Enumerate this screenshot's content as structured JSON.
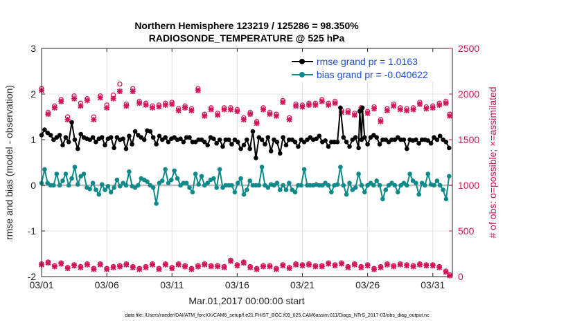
{
  "chart_data": {
    "type": "line",
    "title_line1": "Northern Hemisphere 123219 / 125286 = 98.350%",
    "title_line2": "RADIOSONDE_TEMPERATURE @ 525 hPa",
    "xlabel": "Mar.01,2017 00:00:00 start",
    "ylabel_left": "rmse and bias (model - observation)",
    "ylabel_right": "# of obs: o=possible; ×=assimilated",
    "footnote": "data file: /Users/raeder/DAI/ATM_forcXX/CAM6_setup/f.e21.FHIST_BGC.f09_025.CAM6assim.011/Diags_NTrS_2017-03/obs_diag_output.nc",
    "xlim": [
      0,
      31.5
    ],
    "x_tick_positions": [
      0,
      5,
      10,
      15,
      20,
      25,
      30
    ],
    "x_tick_labels": [
      "03/01",
      "03/06",
      "03/11",
      "03/16",
      "03/21",
      "03/26",
      "03/31"
    ],
    "ylim_left": [
      -2,
      3
    ],
    "y_left_ticks": [
      -2,
      -1,
      0,
      1,
      2,
      3
    ],
    "y_left_tick_labels": [
      "-2",
      "-1",
      "0",
      "1",
      "2",
      "3"
    ],
    "ylim_right": [
      0,
      2500
    ],
    "y_right_ticks": [
      0,
      500,
      1000,
      1500,
      2000,
      2500
    ],
    "y_right_tick_labels": [
      "0",
      "500",
      "1000",
      "1500",
      "2000",
      "2500"
    ],
    "legend": [
      {
        "name": "rmse grand pr = 1.0163",
        "color": "#000000"
      },
      {
        "name": "bias grand pr = -0.040622",
        "color": "#0f8a8a"
      }
    ],
    "colors": {
      "rmse": "#000000",
      "bias": "#0f8a8a",
      "obs": "#d4145a",
      "legend_text": "#1f4fd8",
      "zero_line": "#bbbbbb",
      "grid": "#e4e4e4"
    },
    "series": [
      {
        "name": "rmse",
        "axis": "left",
        "values": [
          1.1,
          1.22,
          1.15,
          1.1,
          1.0,
          1.05,
          1.1,
          0.88,
          1.05,
          0.95,
          1.38,
          1.0,
          0.8,
          1.12,
          1.05,
          1.02,
          1.0,
          1.05,
          0.95,
          1.02,
          1.05,
          0.88,
          1.02,
          1.05,
          0.82,
          1.05,
          1.0,
          1.02,
          0.8,
          1.08,
          0.9,
          1.18,
          1.1,
          1.05,
          1.0,
          1.2,
          1.18,
          1.05,
          0.9,
          1.08,
          1.0,
          1.05,
          0.95,
          1.02,
          1.05,
          1.0,
          1.02,
          0.95,
          1.05,
          1.05,
          0.95,
          0.95,
          1.0,
          1.0,
          0.95,
          0.88,
          1.05,
          1.02,
          0.92,
          1.0,
          0.85,
          1.0,
          1.0,
          0.9,
          1.0,
          0.95,
          0.8,
          0.88,
          1.0,
          0.8,
          1.18,
          0.6,
          1.05,
          1.0,
          0.9,
          1.05,
          0.75,
          1.0,
          0.95,
          0.7,
          1.05,
          0.88,
          1.0,
          1.0,
          0.95,
          0.85,
          1.0,
          0.95,
          1.0,
          1.05,
          1.0,
          1.02,
          1.08,
          0.95,
          0.98,
          0.85,
          0.95,
          0.95,
          0.95,
          1.7,
          1.05,
          0.95,
          0.85,
          1.0,
          1.05,
          0.82,
          1.0,
          1.05,
          0.9,
          1.05,
          1.1,
          1.05,
          0.9,
          1.0,
          1.0,
          0.95,
          1.0,
          1.0,
          1.05,
          1.0,
          1.0,
          0.8,
          1.0,
          0.98,
          1.0,
          0.92,
          1.0,
          1.0,
          0.98,
          0.92,
          1.05,
          1.0,
          1.08,
          1.0,
          0.95,
          0.82
        ],
        "spikes": [
          [
            24.4,
            1.62
          ],
          [
            24.6,
            1.7
          ]
        ]
      },
      {
        "name": "bias",
        "axis": "left",
        "values": [
          0.05,
          0.35,
          0.05,
          0.0,
          0.0,
          0.25,
          0.0,
          0.1,
          0.25,
          0.0,
          0.15,
          0.4,
          0.02,
          0.2,
          0.25,
          -0.05,
          -0.08,
          0.05,
          -0.1,
          -0.2,
          0.02,
          -0.1,
          -0.02,
          -0.15,
          -0.05,
          0.12,
          -0.02,
          0.05,
          0.0,
          0.3,
          -0.02,
          -0.05,
          0.0,
          0.15,
          0.12,
          0.08,
          0.0,
          -0.05,
          -0.4,
          0.05,
          0.1,
          0.35,
          0.05,
          0.12,
          0.32,
          0.15,
          0.0,
          0.05,
          0.05,
          -0.05,
          -0.15,
          0.25,
          0.02,
          0.2,
          0.0,
          0.05,
          0.12,
          0.15,
          -0.05,
          0.35,
          -0.05,
          0.0,
          0.0,
          0.0,
          -0.15,
          0.05,
          0.15,
          -0.2,
          -0.1,
          0.1,
          0.0,
          0.0,
          0.0,
          0.4,
          0.0,
          -0.05,
          0.02,
          0.0,
          0.05,
          -0.1,
          0.0,
          -0.1,
          0.05,
          -0.1,
          -0.15,
          0.0,
          0.0,
          0.35,
          0.0,
          0.0,
          0.0,
          0.02,
          0.0,
          0.0,
          0.05,
          0.0,
          -0.15,
          0.0,
          0.02,
          0.4,
          0.0,
          -0.2,
          0.05,
          -0.1,
          -0.05,
          0.25,
          0.0,
          -0.15,
          0.0,
          0.05,
          0.0,
          0.1,
          0.0,
          -0.3,
          -0.1,
          0.0,
          0.05,
          0.0,
          -0.15,
          0.0,
          0.05,
          0.0,
          0.25,
          0.1,
          0.05,
          -0.2,
          0.05,
          0.0,
          0.25,
          0.02,
          0.0,
          0.1,
          0.0,
          -0.1,
          -0.3,
          0.2
        ]
      },
      {
        "name": "# obs assimilated (×)",
        "axis": "right",
        "x": [
          0,
          0.5,
          1,
          1.5,
          2,
          2.5,
          3,
          3.5,
          4,
          4.5,
          5,
          5.5,
          6,
          6.5,
          7,
          7.5,
          8,
          8.5,
          9,
          9.5,
          10,
          10.5,
          11,
          11.5,
          12,
          12.5,
          13,
          13.5,
          14,
          14.5,
          15,
          15.5,
          16,
          16.5,
          17,
          17.5,
          18,
          18.5,
          19,
          19.5,
          20,
          20.5,
          21,
          21.5,
          22,
          22.5,
          23,
          23.5,
          24,
          24.5,
          25,
          25.5,
          26,
          26.5,
          27,
          27.5,
          28,
          28.5,
          29,
          29.5,
          30,
          30.5,
          31,
          31.3
        ],
        "values": [
          2040,
          1780,
          1850,
          1920,
          1720,
          1950,
          1870,
          1930,
          1720,
          1960,
          1850,
          1950,
          2030,
          1870,
          2030,
          1900,
          1880,
          1850,
          1860,
          1880,
          1890,
          1820,
          1850,
          1820,
          2040,
          1760,
          1830,
          1770,
          1830,
          1830,
          1810,
          1720,
          1780,
          1680,
          1830,
          1780,
          1760,
          1910,
          1720,
          1870,
          1860,
          1880,
          1880,
          1920,
          1880,
          1900,
          1800,
          1800,
          1770,
          1830,
          1790,
          1840,
          1700,
          1820,
          1870,
          1830,
          1820,
          1830,
          1890,
          1840,
          1850,
          1880,
          1900,
          1760
        ],
        "possible": [
          2060,
          1800,
          1870,
          1940,
          1750,
          1980,
          1900,
          1950,
          1750,
          1980,
          1880,
          1990,
          2110,
          1890,
          2060,
          1920,
          1900,
          1870,
          1880,
          1900,
          1910,
          1840,
          1870,
          1840,
          2060,
          1780,
          1850,
          1790,
          1850,
          1850,
          1830,
          1740,
          1800,
          1700,
          1850,
          1800,
          1780,
          1930,
          1740,
          1890,
          1880,
          1900,
          1900,
          1940,
          1900,
          1920,
          1820,
          1820,
          1790,
          1850,
          1810,
          1860,
          1720,
          1840,
          1890,
          1850,
          1840,
          1850,
          1910,
          1860,
          1870,
          1900,
          1920,
          1780
        ]
      },
      {
        "name": "# obs assimilated (×) 00Z",
        "axis": "right",
        "x": [
          0,
          0.5,
          1,
          1.5,
          2,
          2.5,
          3,
          3.5,
          4,
          4.5,
          5,
          5.5,
          6,
          6.5,
          7,
          7.5,
          8,
          8.5,
          9,
          9.5,
          10,
          10.5,
          11,
          11.5,
          12,
          12.5,
          13,
          13.5,
          14,
          14.5,
          15,
          15.5,
          16,
          16.5,
          17,
          17.5,
          18,
          18.5,
          19,
          19.5,
          20,
          20.5,
          21,
          21.5,
          22,
          22.5,
          23,
          23.5,
          24,
          24.5,
          25,
          25.5,
          26,
          26.5,
          27,
          27.5,
          28,
          28.5,
          29,
          29.5,
          30,
          30.5,
          31,
          31.3
        ],
        "values": [
          130,
          150,
          110,
          140,
          90,
          120,
          100,
          130,
          80,
          130,
          80,
          100,
          110,
          130,
          100,
          80,
          100,
          130,
          80,
          130,
          90,
          130,
          110,
          80,
          110,
          130,
          110,
          110,
          100,
          170,
          120,
          150,
          100,
          80,
          110,
          110,
          80,
          120,
          90,
          130,
          120,
          130,
          110,
          110,
          140,
          120,
          140,
          100,
          130,
          100,
          120,
          80,
          100,
          130,
          110,
          130,
          120,
          110,
          130,
          120,
          120,
          100,
          50,
          10
        ],
        "possible": [
          140,
          160,
          120,
          150,
          100,
          130,
          110,
          140,
          90,
          140,
          90,
          110,
          120,
          140,
          110,
          90,
          110,
          140,
          90,
          140,
          100,
          140,
          120,
          90,
          120,
          140,
          120,
          120,
          110,
          180,
          130,
          160,
          110,
          90,
          120,
          120,
          90,
          130,
          100,
          140,
          130,
          140,
          120,
          120,
          150,
          130,
          150,
          110,
          140,
          110,
          130,
          90,
          110,
          140,
          120,
          140,
          130,
          120,
          140,
          130,
          130,
          110,
          60,
          20
        ]
      }
    ]
  }
}
